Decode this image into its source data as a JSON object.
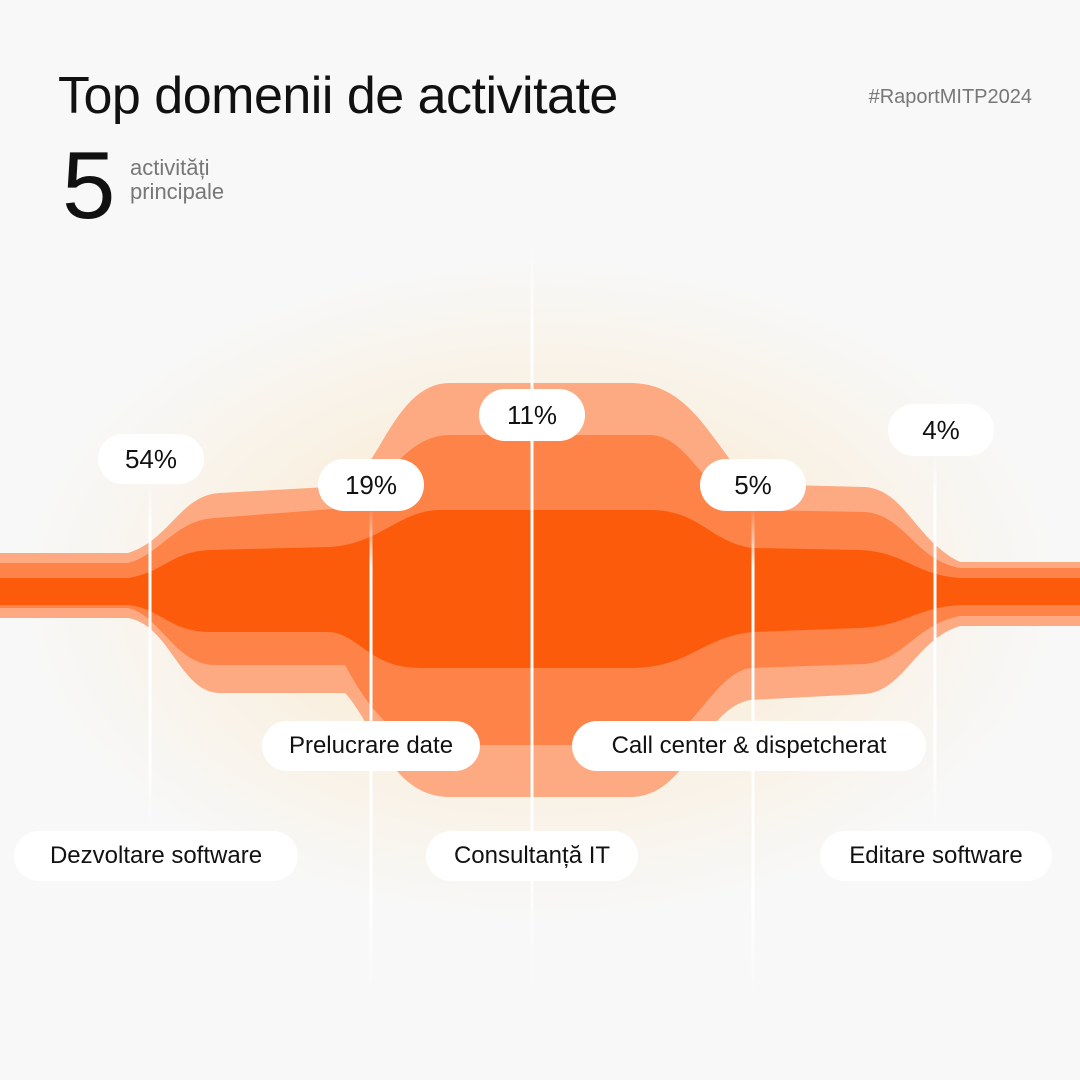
{
  "header": {
    "title": "Top domenii de activitate",
    "hashtag": "#RaportMITP2024",
    "count": "5",
    "count_label_line1": "activități",
    "count_label_line2": "principale"
  },
  "colors": {
    "band_outer": "#fdaa82",
    "band_middle": "#fd8348",
    "band_core": "#fc5b0b",
    "divider": "#ffffff",
    "pill": "#ffffff"
  },
  "chart_data": {
    "type": "area",
    "title": "Top domenii de activitate",
    "categories": [
      "Dezvoltare software",
      "Prelucrare date",
      "Consultanță IT",
      "Call center & dispetcherat",
      "Editare software"
    ],
    "value_labels": [
      "54%",
      "19%",
      "11%",
      "5%",
      "4%"
    ],
    "values": [
      54,
      19,
      11,
      5,
      4
    ],
    "unit": "%"
  }
}
